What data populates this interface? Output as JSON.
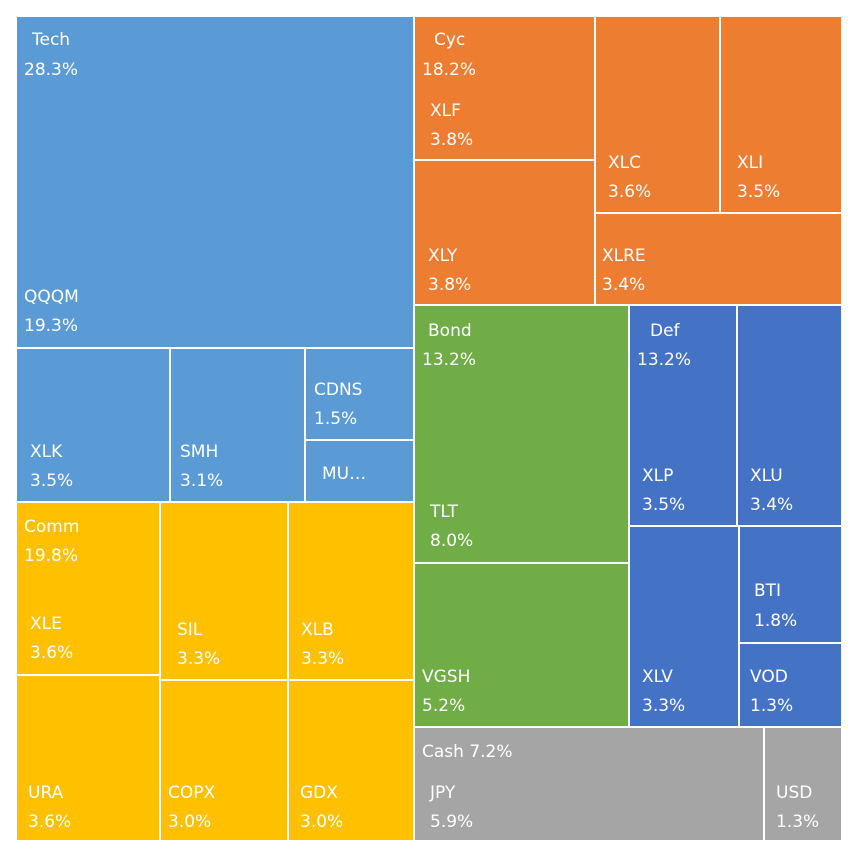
{
  "chart_data": {
    "type": "treemap",
    "title": "",
    "groups": [
      {
        "name": "Tech",
        "value": "28.3%",
        "color": "#5B9BD5"
      },
      {
        "name": "Cyc",
        "value": "18.2%",
        "color": "#ED7D31"
      },
      {
        "name": "Bond",
        "value": "13.2%",
        "color": "#70AD47"
      },
      {
        "name": "Def",
        "value": "13.2%",
        "color": "#4472C4"
      },
      {
        "name": "Comm",
        "value": "19.8%",
        "color": "#FFC000"
      },
      {
        "name": "Cash",
        "value": "7.2%",
        "color": "#A5A5A5"
      }
    ],
    "items": [
      {
        "group": "Tech",
        "name": "QQQM",
        "value": "19.3%"
      },
      {
        "group": "Tech",
        "name": "XLK",
        "value": "3.5%"
      },
      {
        "group": "Tech",
        "name": "SMH",
        "value": "3.1%"
      },
      {
        "group": "Tech",
        "name": "CDNS",
        "value": "1.5%"
      },
      {
        "group": "Tech",
        "name": "MU…",
        "value": ""
      },
      {
        "group": "Cyc",
        "name": "XLF",
        "value": "3.8%"
      },
      {
        "group": "Cyc",
        "name": "XLC",
        "value": "3.6%"
      },
      {
        "group": "Cyc",
        "name": "XLI",
        "value": "3.5%"
      },
      {
        "group": "Cyc",
        "name": "XLY",
        "value": "3.8%"
      },
      {
        "group": "Cyc",
        "name": "XLRE",
        "value": "3.4%"
      },
      {
        "group": "Bond",
        "name": "TLT",
        "value": "8.0%"
      },
      {
        "group": "Bond",
        "name": "VGSH",
        "value": "5.2%"
      },
      {
        "group": "Def",
        "name": "XLP",
        "value": "3.5%"
      },
      {
        "group": "Def",
        "name": "XLU",
        "value": "3.4%"
      },
      {
        "group": "Def",
        "name": "XLV",
        "value": "3.3%"
      },
      {
        "group": "Def",
        "name": "BTI",
        "value": "1.8%"
      },
      {
        "group": "Def",
        "name": "VOD",
        "value": "1.3%"
      },
      {
        "group": "Comm",
        "name": "XLE",
        "value": "3.6%"
      },
      {
        "group": "Comm",
        "name": "SIL",
        "value": "3.3%"
      },
      {
        "group": "Comm",
        "name": "XLB",
        "value": "3.3%"
      },
      {
        "group": "Comm",
        "name": "URA",
        "value": "3.6%"
      },
      {
        "group": "Comm",
        "name": "COPX",
        "value": "3.0%"
      },
      {
        "group": "Comm",
        "name": "GDX",
        "value": "3.0%"
      },
      {
        "group": "Cash",
        "name": "JPY",
        "value": "5.9%"
      },
      {
        "group": "Cash",
        "name": "USD",
        "value": "1.3%"
      }
    ]
  }
}
